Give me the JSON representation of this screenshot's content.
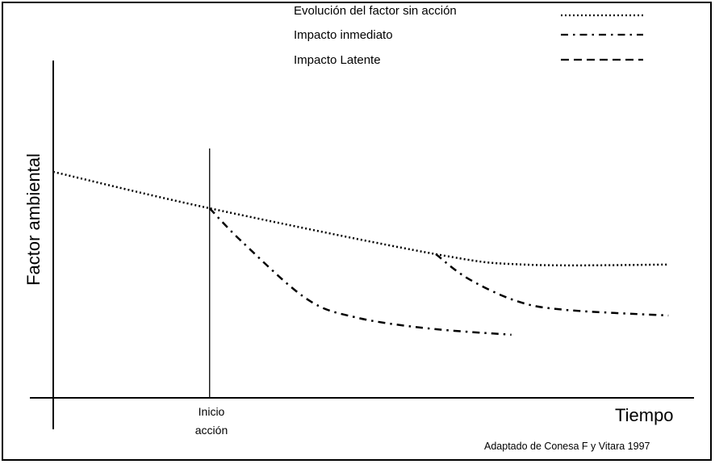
{
  "chart_data": {
    "type": "line",
    "xlabel": "Tiempo",
    "ylabel": "Factor ambiental",
    "grid": false,
    "legend_position": "top-right",
    "x_ticks": false,
    "y_ticks": false,
    "xlim": [
      0,
      100
    ],
    "ylim": [
      0,
      100
    ],
    "annotation": {
      "x": 24.4,
      "line1": "Inicio",
      "line2": "acción"
    },
    "source": "Adaptado de Conesa F y Vitara 1997",
    "series": [
      {
        "name": "Evolución del factor sin acción",
        "style": "dotted",
        "x": [
          0,
          24.4,
          59.7,
          73.6,
          96
        ],
        "y": [
          67,
          56.2,
          42.6,
          39.5,
          39.5
        ]
      },
      {
        "name": "Impacto inmediato",
        "style": "dash-dot",
        "x": [
          24.4,
          29.5,
          39.5,
          47.1,
          58.4,
          71.5
        ],
        "y": [
          56.2,
          46.2,
          29.4,
          23.9,
          20.6,
          18.7
        ]
      },
      {
        "name": "Impacto Latente",
        "style": "dashed",
        "x": [
          59.7,
          64.7,
          72.3,
          79.8,
          96
        ],
        "y": [
          42.6,
          35.4,
          28.7,
          26.1,
          24.4
        ]
      }
    ]
  }
}
